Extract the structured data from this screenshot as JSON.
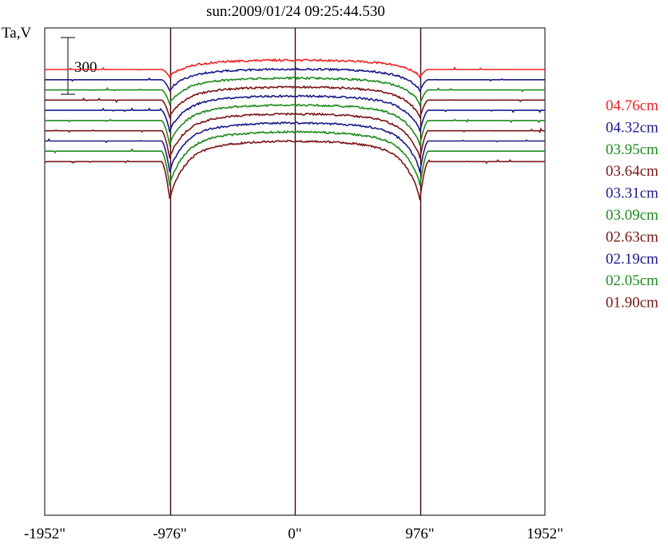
{
  "chart_data": {
    "type": "line",
    "title": "sun:2009/01/24 09:25:44.530",
    "ylabel": "Ta,V",
    "scale_bar_label": "300",
    "x_ticks": [
      "-1952\"",
      "-976\"",
      "0\"",
      "976\"",
      "1952\""
    ],
    "x_tick_values": [
      -1952,
      -976,
      0,
      976,
      1952
    ],
    "xlim": [
      -1952,
      1952
    ],
    "vertical_lines_x": [
      -976,
      0,
      976
    ],
    "series": [
      {
        "name": "04.76cm",
        "color": "#ee2222",
        "baseline": 0
      },
      {
        "name": "04.32cm",
        "color": "#1a1a8a",
        "baseline": -54
      },
      {
        "name": "03.95cm",
        "color": "#1e8a1e",
        "baseline": -108
      },
      {
        "name": "03.64cm",
        "color": "#7a1515",
        "baseline": -162
      },
      {
        "name": "03.31cm",
        "color": "#1a1a8a",
        "baseline": -216
      },
      {
        "name": "03.09cm",
        "color": "#1e8a1e",
        "baseline": -270
      },
      {
        "name": "02.63cm",
        "color": "#7a1515",
        "baseline": -324
      },
      {
        "name": "02.19cm",
        "color": "#1a1a8a",
        "baseline": -378
      },
      {
        "name": "02.05cm",
        "color": "#1e8a1e",
        "baseline": -432
      },
      {
        "name": "01.90cm",
        "color": "#7a1515",
        "baseline": -487
      }
    ],
    "grid": false,
    "legend_position": "right"
  }
}
